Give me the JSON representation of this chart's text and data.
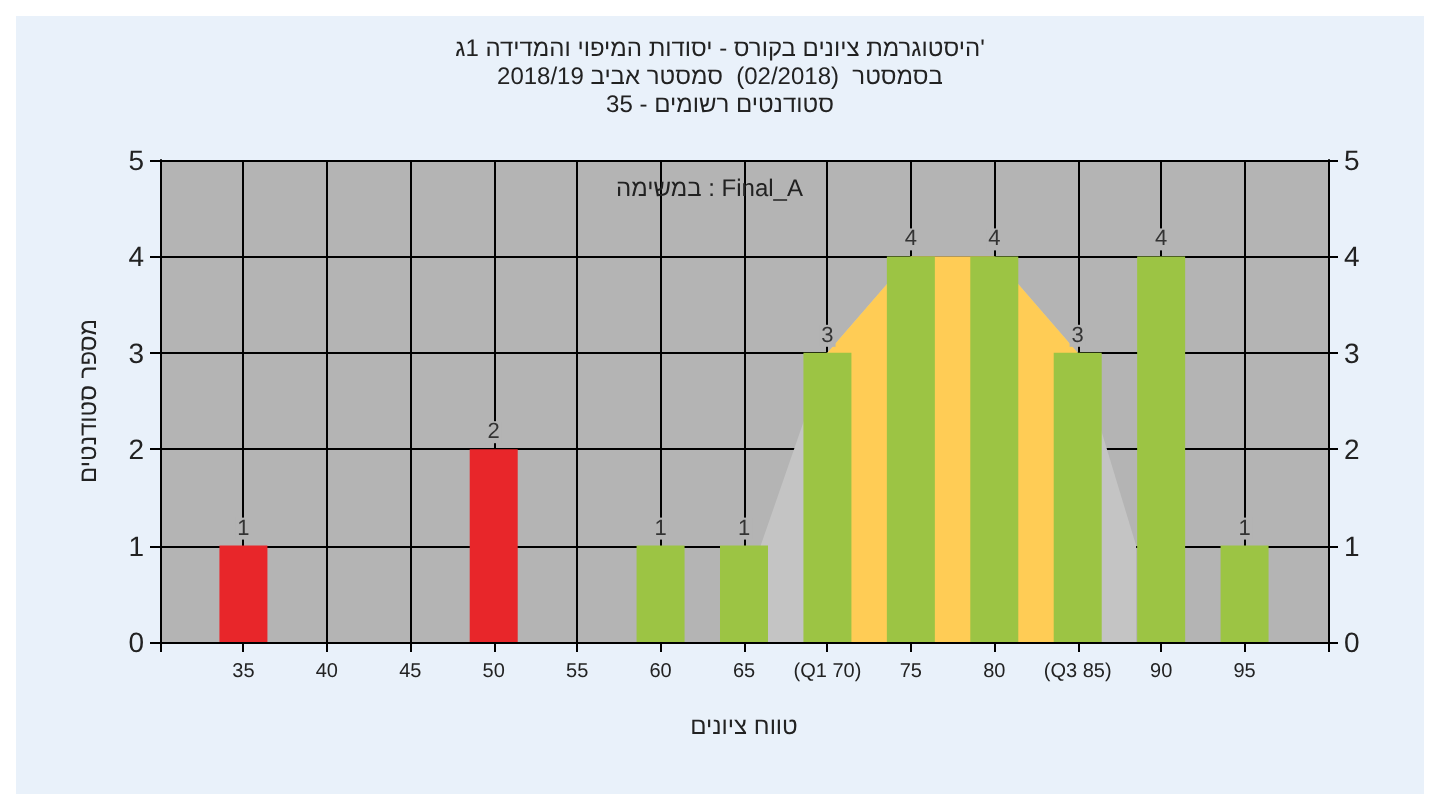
{
  "chart_data": {
    "type": "bar",
    "title": "היסטוגרמת ציונים בקורס - יסודות המיפוי והמדידה 1ג'",
    "subtitle": "בסמסטר  (02/2018)  סמסטר אביב 2018/19\nסטודנטים רשומים - 35",
    "xlabel": "טווח ציונים",
    "ylabel": "מספר סטודנטים",
    "annotations": [
      "במשימה : Final_A"
    ],
    "x": [
      35,
      50,
      60,
      65,
      70,
      75,
      80,
      85,
      90,
      95
    ],
    "series": [
      {
        "type": "area",
        "color": "#c4c4c4",
        "x": [
          66,
          70,
          75,
          80,
          85,
          88.5
        ],
        "values": [
          1,
          3,
          4,
          4,
          3,
          1
        ]
      },
      {
        "type": "area",
        "color": "#ffcc55",
        "x": [
          70,
          75,
          80,
          85
        ],
        "values": [
          3,
          4,
          4,
          3
        ]
      },
      {
        "values": [
          1,
          2,
          1,
          1,
          3,
          4,
          4,
          3,
          4,
          1
        ],
        "value_labels": [
          "1",
          "2",
          "1",
          "1",
          "3",
          "4",
          "4",
          "3",
          "4",
          "1"
        ],
        "colors": [
          "#e8262a",
          "#e8262a",
          "#9cc444",
          "#9cc444",
          "#9cc444",
          "#9cc444",
          "#9cc444",
          "#9cc444",
          "#9cc444",
          "#9cc444"
        ]
      }
    ],
    "xlim": [
      30,
      100
    ],
    "xticks": [
      {
        "value": 30,
        "label": null
      },
      35,
      40,
      45,
      50,
      55,
      60,
      65,
      {
        "value": 70,
        "label": "(Q1 70)"
      },
      75,
      80,
      {
        "value": 85,
        "label": "(Q3 85)"
      },
      90,
      95,
      {
        "value": 100,
        "label": null
      }
    ],
    "ylim": [
      0,
      5
    ],
    "yticks": [
      0,
      1,
      2,
      3,
      4,
      5
    ],
    "y2lim": [
      0,
      5
    ],
    "y2ticks": [
      0,
      1,
      2,
      3,
      4,
      5
    ],
    "grid": true
  }
}
